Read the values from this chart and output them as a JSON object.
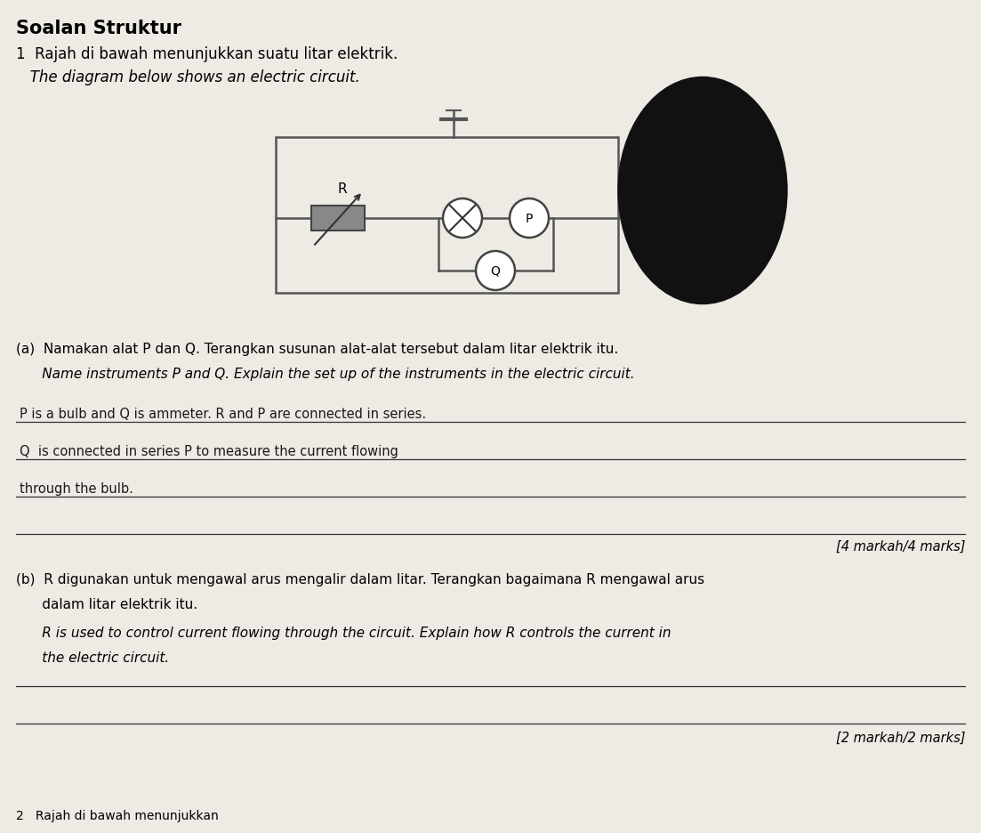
{
  "title": "Soalan Struktur",
  "q_num": "1",
  "q_malay": "Rajah di bawah menunjukkan suatu litar elektrik.",
  "q_english": "The diagram below shows an electric circuit.",
  "bg_color": "#c8c0b4",
  "paper_color": "#eeeae4",
  "R_label": "R",
  "P_label": "P",
  "Q_label": "Q",
  "part_a_header": "(a)  Namakan alat P dan Q. Terangkan susunan alat-alat tersebut dalam litar elektrik itu.",
  "part_a_english": "      Name instruments P and Q. Explain the set up of the instruments in the electric circuit.",
  "part_a_line1": "P is a bulb and Q is ammeter. R and P are connected in series.",
  "part_a_line2": "Q  is connected in series P to measure the current flowing",
  "part_a_line3": "through the bulb.",
  "part_a_marks": "[4 markah/4 marks]",
  "part_b_header1": "(b)  R digunakan untuk mengawal arus mengalir dalam litar. Terangkan bagaimana R mengawal arus",
  "part_b_header2": "      dalam litar elektrik itu.",
  "part_b_english1": "      R is used to control current flowing through the circuit. Explain how R controls the current in",
  "part_b_english2": "      the electric circuit.",
  "part_b_marks": "[2 markah/2 marks]",
  "footer": "2   Rajah di bawah menunjukkan"
}
